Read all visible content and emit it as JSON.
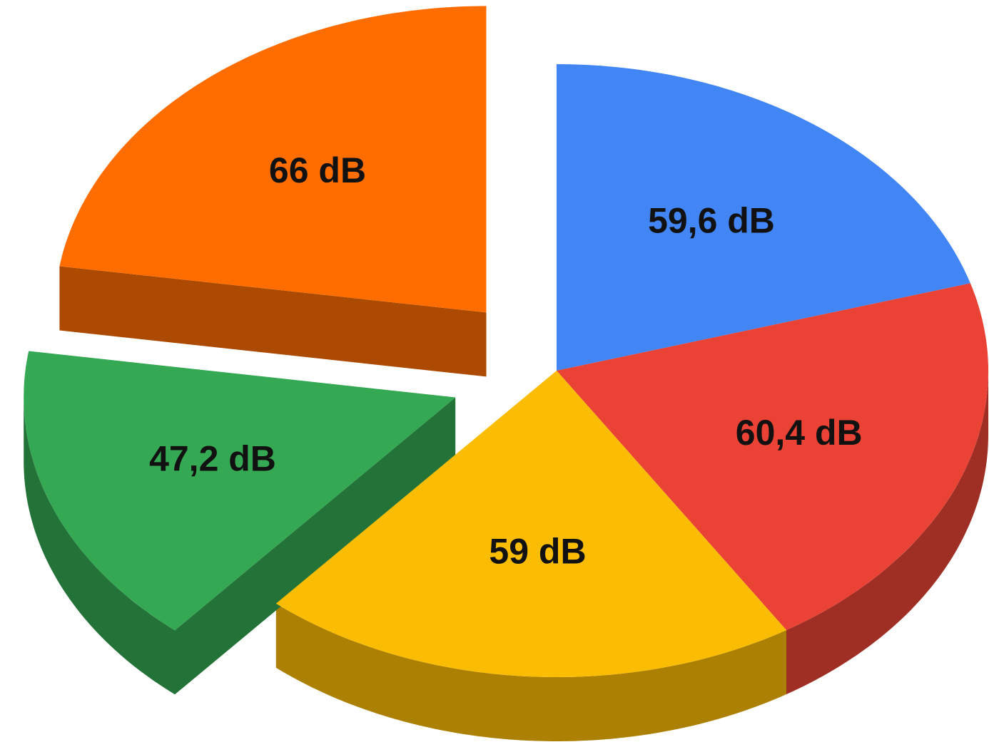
{
  "chart_data": {
    "type": "pie",
    "values": [
      59.6,
      60.4,
      59,
      47.2,
      66
    ],
    "value_labels": [
      "59,6 dB",
      "60,4 dB",
      "59 dB",
      "47,2 dB",
      "66 dB"
    ],
    "colors": [
      "#4285f4",
      "#ea4335",
      "#fbbc04",
      "#34a853",
      "#ff6d01"
    ]
  }
}
